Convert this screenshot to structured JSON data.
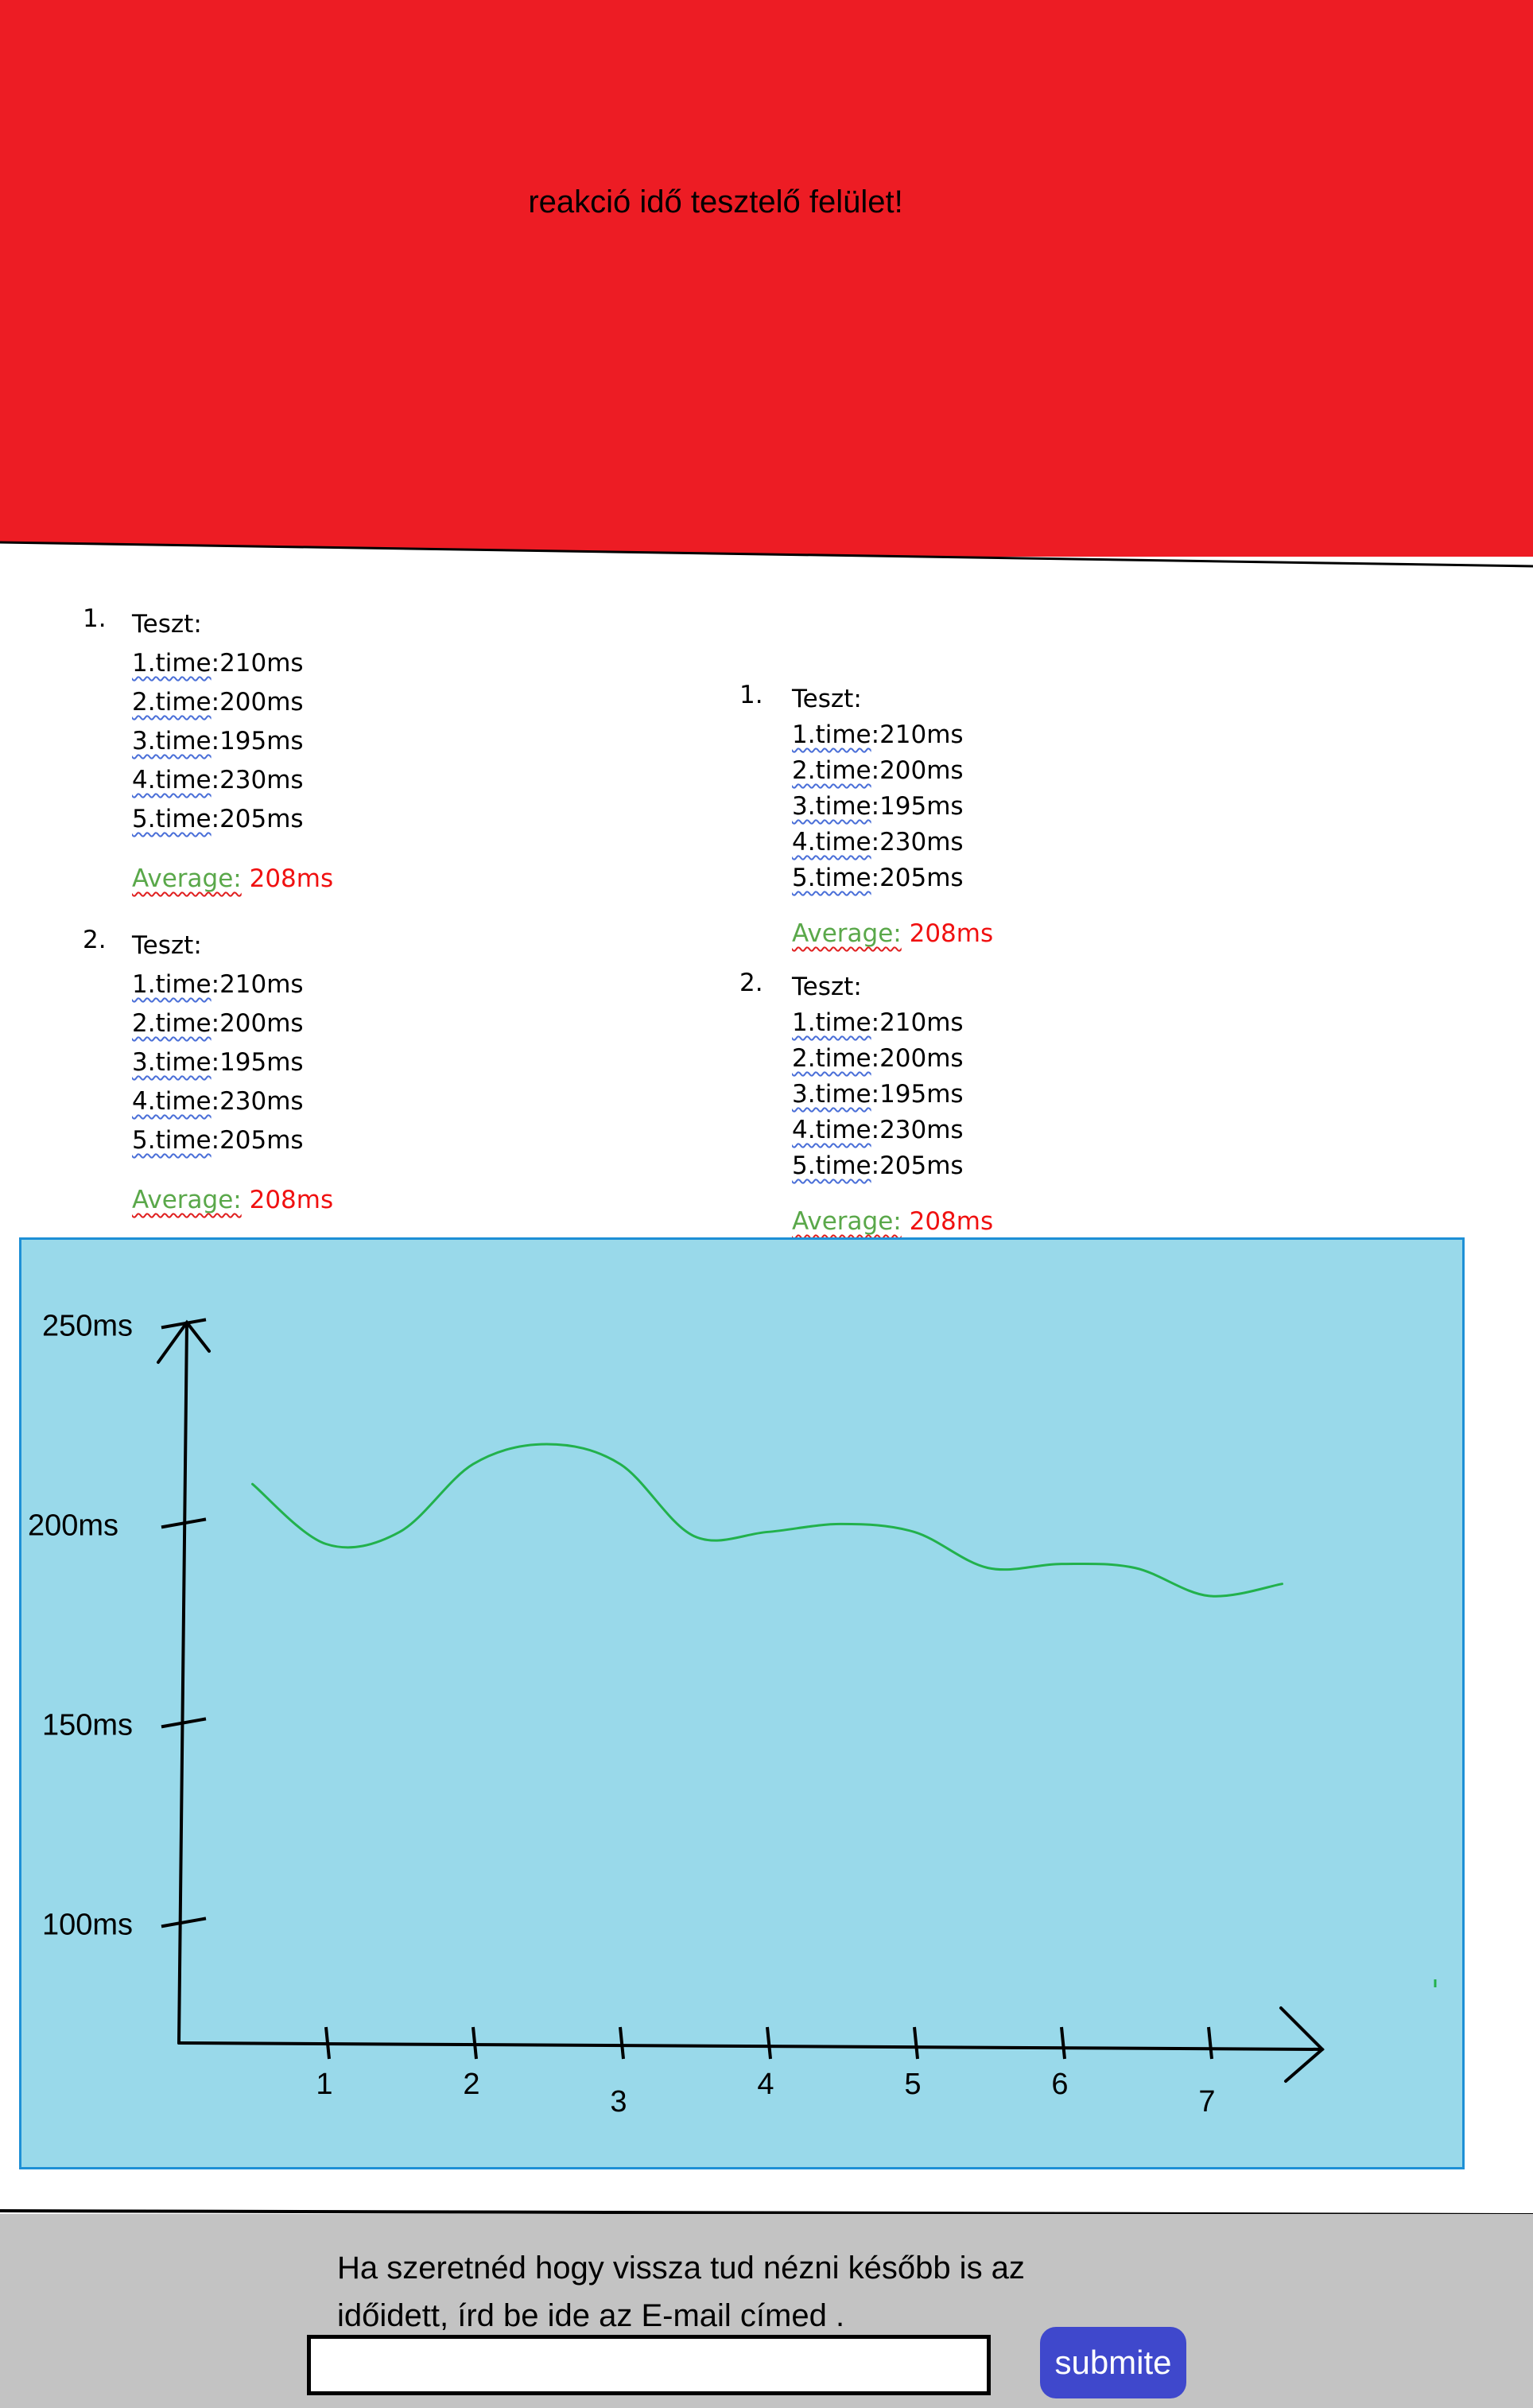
{
  "header": {
    "title": "reakció idő tesztelő felület!",
    "background": "#ed1c24"
  },
  "results_left": {
    "tests": [
      {
        "number": "1.",
        "label": "Teszt:",
        "times": [
          {
            "label": "1.time",
            "value": ":210ms"
          },
          {
            "label": "2.time",
            "value": ":200ms"
          },
          {
            "label": "3.time",
            "value": ":195ms"
          },
          {
            "label": "4.time",
            "value": ":230ms"
          },
          {
            "label": "5.time",
            "value": ":205ms"
          }
        ],
        "average_label": "Average:",
        "average_value": " 208ms"
      },
      {
        "number": "2.",
        "label": "Teszt:",
        "times": [
          {
            "label": "1.time",
            "value": ":210ms"
          },
          {
            "label": "2.time",
            "value": ":200ms"
          },
          {
            "label": "3.time",
            "value": ":195ms"
          },
          {
            "label": "4.time",
            "value": ":230ms"
          },
          {
            "label": "5.time",
            "value": ":205ms"
          }
        ],
        "average_label": "Average:",
        "average_value": " 208ms"
      }
    ]
  },
  "results_right": {
    "tests": [
      {
        "number": "1.",
        "label": "Teszt:",
        "times": [
          {
            "label": "1.time",
            "value": ":210ms"
          },
          {
            "label": "2.time",
            "value": ":200ms"
          },
          {
            "label": "3.time",
            "value": ":195ms"
          },
          {
            "label": "4.time",
            "value": ":230ms"
          },
          {
            "label": "5.time",
            "value": ":205ms"
          }
        ],
        "average_label": "Average:",
        "average_value": " 208ms"
      },
      {
        "number": "2.",
        "label": "Teszt:",
        "times": [
          {
            "label": "1.time",
            "value": ":210ms"
          },
          {
            "label": "2.time",
            "value": ":200ms"
          },
          {
            "label": "3.time",
            "value": ":195ms"
          },
          {
            "label": "4.time",
            "value": ":230ms"
          },
          {
            "label": "5.time",
            "value": ":205ms"
          }
        ],
        "average_label": "Average:",
        "average_value": " 208ms"
      }
    ]
  },
  "chart": {
    "background": "#99d9ea",
    "line_color": "#22b14c",
    "y_ticks": [
      "250ms",
      "200ms",
      "150ms",
      "100ms"
    ],
    "x_ticks": [
      "1",
      "2",
      "3",
      "4",
      "5",
      "6",
      "7"
    ]
  },
  "chart_data": {
    "type": "line",
    "title": "",
    "xlabel": "",
    "ylabel": "",
    "x": [
      0.5,
      1.0,
      1.5,
      2.0,
      2.5,
      3.0,
      3.5,
      4.0,
      4.5,
      5.0,
      5.5,
      6.0,
      6.5,
      7.0,
      7.5
    ],
    "series": [
      {
        "values": [
          210,
          195,
          198,
          215,
          220,
          215,
          197,
          198,
          200,
          198,
          189,
          190,
          189,
          182,
          185
        ]
      }
    ],
    "ylim": [
      70,
      280
    ],
    "grid": false
  },
  "footer": {
    "message": "Ha szeretnéd hogy vissza tud nézni később is az időidett, írd be ide az E-mail címed .",
    "email_value": "",
    "submit_label": "submite",
    "background": "#c3c3c3",
    "button_color": "#3f48cc"
  }
}
